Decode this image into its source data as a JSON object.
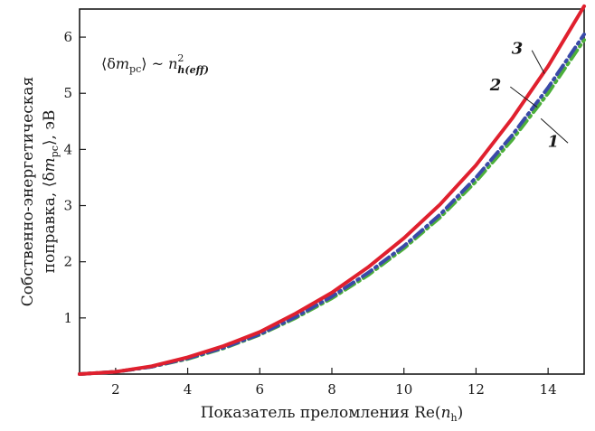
{
  "chart_data": {
    "type": "line",
    "xlabel": "Показатель преломления Re(n_h)",
    "xlabel_parts": {
      "main": "Показатель преломления Re(",
      "var": "n",
      "sub": "h",
      "close": ")"
    },
    "ylabel_line1": "Собственно-энергетическая",
    "ylabel_line2": "поправка, ⟨δm_pc⟩, эВ",
    "ylabel_line2_parts": {
      "pre": "поправка, ⟨δ",
      "var": "m",
      "sub": "pc",
      "post": "⟩, эВ"
    },
    "annotation": "⟨δm_pc⟩ ~ n_h(eff)^2",
    "annotation_parts": {
      "pre": "⟨δ",
      "var": "m",
      "sub": "pc",
      "mid": "⟩ ~ ",
      "var2": "n",
      "sup": "2",
      "sub2": "h(eff)"
    },
    "xlim": [
      1,
      15
    ],
    "ylim": [
      0,
      6.5
    ],
    "xticks": [
      "2",
      "4",
      "6",
      "8",
      "10",
      "12",
      "14"
    ],
    "yticks": [
      "1",
      "2",
      "3",
      "4",
      "5",
      "6"
    ],
    "grid": false,
    "series": [
      {
        "name": "3",
        "color": "#e0202e",
        "dash": "solid",
        "x": [
          1,
          2,
          3,
          4,
          5,
          6,
          7,
          8,
          9,
          10,
          11,
          12,
          13,
          14,
          15
        ],
        "y": [
          0.0,
          0.04,
          0.14,
          0.3,
          0.5,
          0.75,
          1.08,
          1.45,
          1.9,
          2.42,
          3.02,
          3.72,
          4.55,
          5.48,
          6.55
        ]
      },
      {
        "name": "2",
        "color": "#3a4aa8",
        "dash": "dashdot",
        "x": [
          1,
          2,
          3,
          4,
          5,
          6,
          7,
          8,
          9,
          10,
          11,
          12,
          13,
          14,
          15
        ],
        "y": [
          0.0,
          0.04,
          0.13,
          0.28,
          0.47,
          0.71,
          1.02,
          1.38,
          1.8,
          2.28,
          2.84,
          3.5,
          4.25,
          5.1,
          6.05
        ]
      },
      {
        "name": "1",
        "color": "#4caf3a",
        "dash": "dashdot",
        "x": [
          1,
          2,
          3,
          4,
          5,
          6,
          7,
          8,
          9,
          10,
          11,
          12,
          13,
          14,
          15
        ],
        "y": [
          0.0,
          0.04,
          0.13,
          0.27,
          0.46,
          0.7,
          1.0,
          1.35,
          1.76,
          2.24,
          2.79,
          3.43,
          4.17,
          5.0,
          5.95
        ]
      }
    ],
    "labels": [
      {
        "text": "3",
        "x": 13.3,
        "y": 5.7,
        "target_x": 13.9,
        "target_y": 5.35
      },
      {
        "text": "2",
        "x": 12.7,
        "y": 5.05,
        "target_x": 13.7,
        "target_y": 4.75
      },
      {
        "text": "1",
        "x": 14.3,
        "y": 4.05,
        "target_x": 13.8,
        "target_y": 4.55
      }
    ]
  }
}
